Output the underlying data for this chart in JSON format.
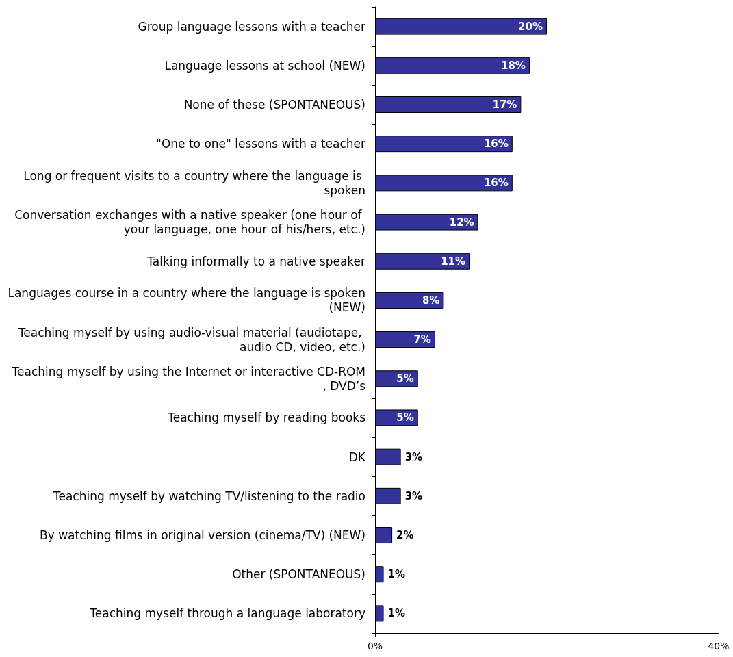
{
  "chart_data": {
    "type": "bar",
    "orientation": "horizontal",
    "categories": [
      "Group language lessons with a teacher",
      "Language lessons at school (NEW)",
      "None of these (SPONTANEOUS)",
      "\"One to one\" lessons with a teacher",
      "Long or frequent visits to a country where the language is spoken",
      "Conversation exchanges with a native speaker (one hour of your language, one hour of his/hers, etc.)",
      "Talking informally to a native speaker",
      "Languages course in a country where the language is spoken (NEW)",
      "Teaching myself by using audio-visual material (audiotape, audio CD, video, etc.)",
      "Teaching myself by using the Internet or interactive CD-ROM, DVD’s",
      "Teaching myself by reading books",
      "DK",
      "Teaching myself by watching TV/listening to the radio",
      "By watching films in original version (cinema/TV) (NEW)",
      "Other (SPONTANEOUS)",
      "Teaching myself through a language laboratory"
    ],
    "values": [
      20,
      18,
      17,
      16,
      16,
      12,
      11,
      8,
      7,
      5,
      5,
      3,
      3,
      2,
      1,
      1
    ],
    "value_labels": [
      "20%",
      "18%",
      "17%",
      "16%",
      "16%",
      "12%",
      "11%",
      "8%",
      "7%",
      "5%",
      "5%",
      "3%",
      "3%",
      "2%",
      "1%",
      "1%"
    ],
    "color": "#333399",
    "xlim": [
      0,
      40
    ],
    "xticks": [
      {
        "value": 0,
        "label": "0%"
      },
      {
        "value": 40,
        "label": "40%"
      }
    ],
    "grid": false
  }
}
